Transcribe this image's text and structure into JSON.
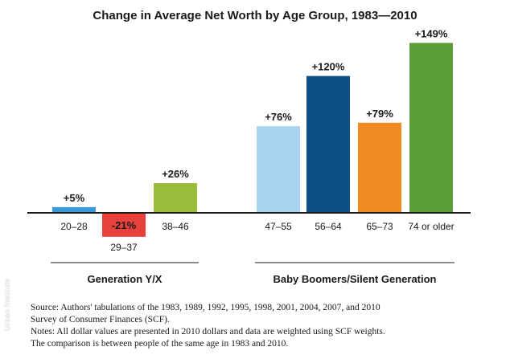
{
  "chart_data": {
    "type": "bar",
    "title": "Change in Average Net Worth by Age Group, 1983—2010",
    "categories": [
      "20–28",
      "29–37",
      "38–46",
      "47–55",
      "56–64",
      "65–73",
      "74 or older"
    ],
    "values": [
      5,
      -21,
      26,
      76,
      120,
      79,
      149
    ],
    "data_labels": [
      "+5%",
      "-21%",
      "+26%",
      "+76%",
      "+120%",
      "+79%",
      "+149%"
    ],
    "colors": [
      "#3a9ad9",
      "#e8403a",
      "#9bbb3b",
      "#a9d4f0",
      "#0d4f86",
      "#f28a24",
      "#5a9e35"
    ],
    "groups": [
      {
        "label": "Generation Y/X",
        "category_indices": [
          0,
          1,
          2
        ]
      },
      {
        "label": "Baby Boomers/Silent Generation",
        "category_indices": [
          3,
          4,
          5,
          6
        ]
      }
    ],
    "xlabel": "",
    "ylabel": "",
    "ylim": [
      -30,
      160
    ],
    "unit": "%",
    "grid": false,
    "legend": "none"
  },
  "notes": {
    "line1": "Source: Authors' tabulations of the 1983, 1989, 1992, 1995, 1998, 2001, 2004, 2007, and 2010",
    "line2": "Survey of Consumer Finances (SCF).",
    "line3": "Notes: All dollar values are presented in 2010 dollars and data are weighted using SCF weights.",
    "line4": "The comparison is between people of the same age in 1983 and 2010."
  },
  "watermark": "Urban Institute"
}
